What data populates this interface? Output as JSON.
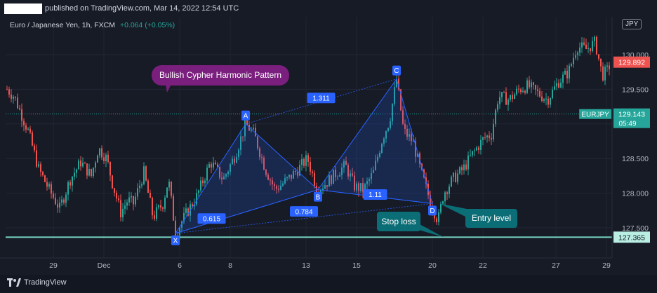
{
  "header": {
    "published": "published on TradingView.com, Mar 14, 2022 12:54 UTC",
    "symbol": "Euro / Japanese Yen, 1h, FXCM",
    "change": "+0.064 (+0.05%)",
    "currency": "JPY"
  },
  "footer": {
    "brand": "TradingView"
  },
  "colors": {
    "background": "#171b26",
    "bull": "#26a69a",
    "bear": "#ef5350",
    "pattern": "#2962ff",
    "callout": "#7b1f7e",
    "annotation": "#0b6e76",
    "support": "#79d6c4"
  },
  "chart_data": {
    "type": "candlestick",
    "title": "Bullish Cypher Harmonic Pattern",
    "x_ticks": [
      "29",
      "Dec",
      "6",
      "8",
      "13",
      "15",
      "20",
      "22",
      "27",
      "29"
    ],
    "y_ticks": [
      127.5,
      128.0,
      128.5,
      129.0,
      129.5,
      130.0
    ],
    "y_range": [
      127.15,
      130.5
    ],
    "price_badges": [
      {
        "label": "",
        "value": "129.892",
        "kind": "high"
      },
      {
        "label": "EURJPY",
        "value": "129.143",
        "sub": "05:49",
        "kind": "last"
      },
      {
        "label": "",
        "value": "127.365",
        "kind": "level"
      }
    ],
    "last_price": 129.143,
    "support_level": 127.365,
    "pattern_points": [
      {
        "label": "X",
        "price": 127.42
      },
      {
        "label": "A",
        "price": 129.0
      },
      {
        "label": "B",
        "price": 128.05
      },
      {
        "label": "C",
        "price": 129.65
      },
      {
        "label": "D",
        "price": 127.85
      }
    ],
    "ratios": [
      {
        "label": "0.615",
        "leg": "XA-B"
      },
      {
        "label": "1.311",
        "leg": "AB-C"
      },
      {
        "label": "0.784",
        "leg": "XC-D"
      },
      {
        "label": "1.11",
        "leg": "BC-D"
      }
    ],
    "annotations": [
      "Stop loss",
      "Entry level"
    ]
  }
}
